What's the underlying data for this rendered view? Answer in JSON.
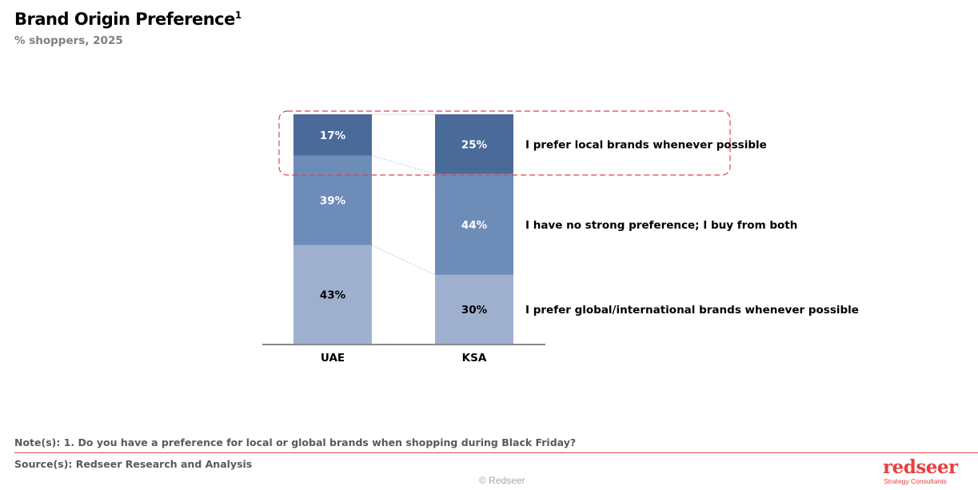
{
  "header": {
    "title": "Brand Origin Preference",
    "title_sup": "1",
    "subtitle": "% shoppers, 2025"
  },
  "chart_data": {
    "type": "bar",
    "stacked": true,
    "categories": [
      "UAE",
      "KSA"
    ],
    "series": [
      {
        "name": "I prefer global/international brands whenever possible",
        "values": [
          43,
          30
        ],
        "color": "#9fb0cf",
        "label_color": "#000000"
      },
      {
        "name": "I have no strong preference; I buy from both",
        "values": [
          39,
          44
        ],
        "color": "#6d8cb8",
        "label_color": "#ffffff"
      },
      {
        "name": "I prefer local brands whenever possible",
        "values": [
          17,
          25
        ],
        "color": "#4a6a9a",
        "label_color": "#ffffff"
      }
    ],
    "value_suffix": "%",
    "ylim": [
      0,
      100
    ],
    "grid": false,
    "legend": "right",
    "highlight": "I prefer local brands whenever possible",
    "highlight_color": "#e0454a"
  },
  "footer": {
    "note": "Note(s): 1. Do you have a preference for local or global brands when shopping during Black Friday?",
    "source": "Source(s): Redseer Research and Analysis",
    "copyright": "© Redseer",
    "logo": "redseer",
    "logo_sub": "Strategy Consultants"
  }
}
